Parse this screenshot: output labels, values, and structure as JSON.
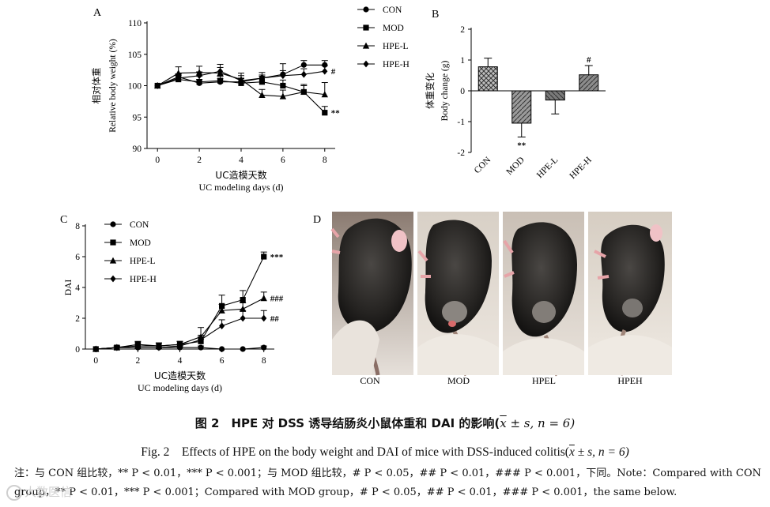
{
  "chart_data": [
    {
      "panel": "A",
      "type": "line",
      "ylabel_cn": "相对体重",
      "ylabel_en": "Relative body weight (%)",
      "xlabel_cn": "UC造模天数",
      "xlabel_en": "UC modeling days (d)",
      "ylim": [
        90,
        110
      ],
      "xlim": [
        -0.5,
        8.5
      ],
      "y_ticks": [
        90,
        95,
        100,
        105,
        110
      ],
      "x_ticks": [
        0,
        2,
        4,
        6,
        8
      ],
      "x": [
        0,
        1,
        2,
        3,
        4,
        5,
        6,
        7,
        8
      ],
      "series": [
        {
          "name": "CON",
          "marker": "circle",
          "values": [
            100,
            101.4,
            100.4,
            100.6,
            100.6,
            101.2,
            101.8,
            103.3,
            103.3
          ],
          "errors": [
            0,
            0.5,
            0.6,
            0.5,
            0.5,
            0.5,
            0.6,
            0.7,
            0.7
          ]
        },
        {
          "name": "MOD",
          "marker": "square",
          "values": [
            100,
            101,
            100.6,
            100.8,
            100.4,
            100.6,
            100.0,
            99.0,
            95.7
          ],
          "errors": [
            0,
            0.6,
            0.9,
            0.7,
            0.8,
            0.9,
            0.9,
            1.0,
            1.0
          ]
        },
        {
          "name": "HPE-L",
          "marker": "triangle",
          "values": [
            100,
            102,
            102.1,
            102,
            101,
            98.5,
            98.3,
            99.0,
            98.6
          ],
          "errors": [
            0,
            1.0,
            1.0,
            1.4,
            1.0,
            0.9,
            1.0,
            1.2,
            1.9
          ]
        },
        {
          "name": "HPE-H",
          "marker": "diamond",
          "values": [
            100,
            101.2,
            101.6,
            102.3,
            100.8,
            101.2,
            101.6,
            101.8,
            102.3
          ],
          "errors": [
            0,
            0.6,
            0.6,
            0.6,
            0.8,
            0.9,
            1.9,
            0.9,
            0.9
          ]
        }
      ],
      "annotations": [
        {
          "series": "MOD",
          "x": 8,
          "text": "**"
        },
        {
          "series": "HPE-H",
          "x": 8,
          "text": "#"
        }
      ]
    },
    {
      "panel": "B",
      "type": "bar",
      "ylabel_cn": "体重变化",
      "ylabel_en": "Body change (g)",
      "ylim": [
        -2,
        2
      ],
      "y_ticks": [
        -2,
        -1,
        0,
        1,
        2
      ],
      "categories": [
        "CON",
        "MOD",
        "HPE-L",
        "HPE-H"
      ],
      "values": [
        0.78,
        -1.05,
        -0.3,
        0.52
      ],
      "errors": [
        0.28,
        0.45,
        0.45,
        0.3
      ],
      "annotations": [
        "",
        "**",
        "",
        "#"
      ]
    },
    {
      "panel": "C",
      "type": "line",
      "ylabel": "DAI",
      "xlabel_cn": "UC造模天数",
      "xlabel_en": "UC modeling days (d)",
      "ylim": [
        0,
        8
      ],
      "xlim": [
        -0.5,
        8.5
      ],
      "y_ticks": [
        0,
        2,
        4,
        6,
        8
      ],
      "x_ticks": [
        0,
        2,
        4,
        6,
        8
      ],
      "x": [
        0,
        1,
        2,
        3,
        4,
        5,
        6,
        7,
        8
      ],
      "series": [
        {
          "name": "CON",
          "marker": "circle",
          "values": [
            0,
            0.1,
            0.1,
            0.1,
            0.1,
            0.1,
            0,
            0,
            0.1
          ],
          "errors": [
            0,
            0.1,
            0.1,
            0.1,
            0.1,
            0.1,
            0,
            0,
            0.1
          ]
        },
        {
          "name": "MOD",
          "marker": "square",
          "values": [
            0,
            0.1,
            0.3,
            0.2,
            0.3,
            0.5,
            2.8,
            3.2,
            6.0
          ],
          "errors": [
            0,
            0.1,
            0.2,
            0.2,
            0.2,
            0.3,
            0.7,
            0.6,
            0.3
          ]
        },
        {
          "name": "HPE-L",
          "marker": "triangle",
          "values": [
            0,
            0.1,
            0.2,
            0.2,
            0.3,
            0.8,
            2.5,
            2.6,
            3.3
          ],
          "errors": [
            0,
            0.1,
            0.2,
            0.2,
            0.2,
            0.6,
            0.4,
            0.4,
            0.4
          ]
        },
        {
          "name": "HPE-H",
          "marker": "diamond",
          "values": [
            0,
            0.1,
            0.1,
            0.1,
            0.2,
            0.6,
            1.5,
            2.0,
            2.0
          ],
          "errors": [
            0,
            0.1,
            0.1,
            0.1,
            0.1,
            0.3,
            0.4,
            0.5,
            0.5
          ]
        }
      ],
      "annotations": [
        {
          "series": "MOD",
          "x": 8,
          "text": "***"
        },
        {
          "series": "HPE-L",
          "x": 8,
          "text": "###"
        },
        {
          "series": "HPE-H",
          "x": 8,
          "text": "##"
        }
      ]
    }
  ],
  "panels": {
    "a": "A",
    "b": "B",
    "c": "C",
    "d": "D"
  },
  "photos": {
    "labels": [
      "CON",
      "MOD",
      "HPEL",
      "HPEH"
    ]
  },
  "caption": {
    "cn_prefix": "图 2　HPE 对 DSS 诱导结肠炎小鼠体重和 DAI 的影响(",
    "cn_x": "x",
    "cn_suffix": " ± s, n = 6)",
    "en_prefix": "Fig. 2　Effects of HPE on the body weight and DAI of mice with DSS-induced colitis(",
    "en_x": "x",
    "en_suffix": " ± s, n = 6)"
  },
  "note": "注：与 CON 组比较，** P < 0.01，*** P < 0.001；与 MOD 组比较，# P < 0.05，## P < 0.01，### P < 0.001，下同。Note：Compared with CON group，** P < 0.01，*** P < 0.001；Compared with MOD group，# P < 0.05，## P < 0.01，### P < 0.001，the same below.",
  "watermark": "大数医信"
}
